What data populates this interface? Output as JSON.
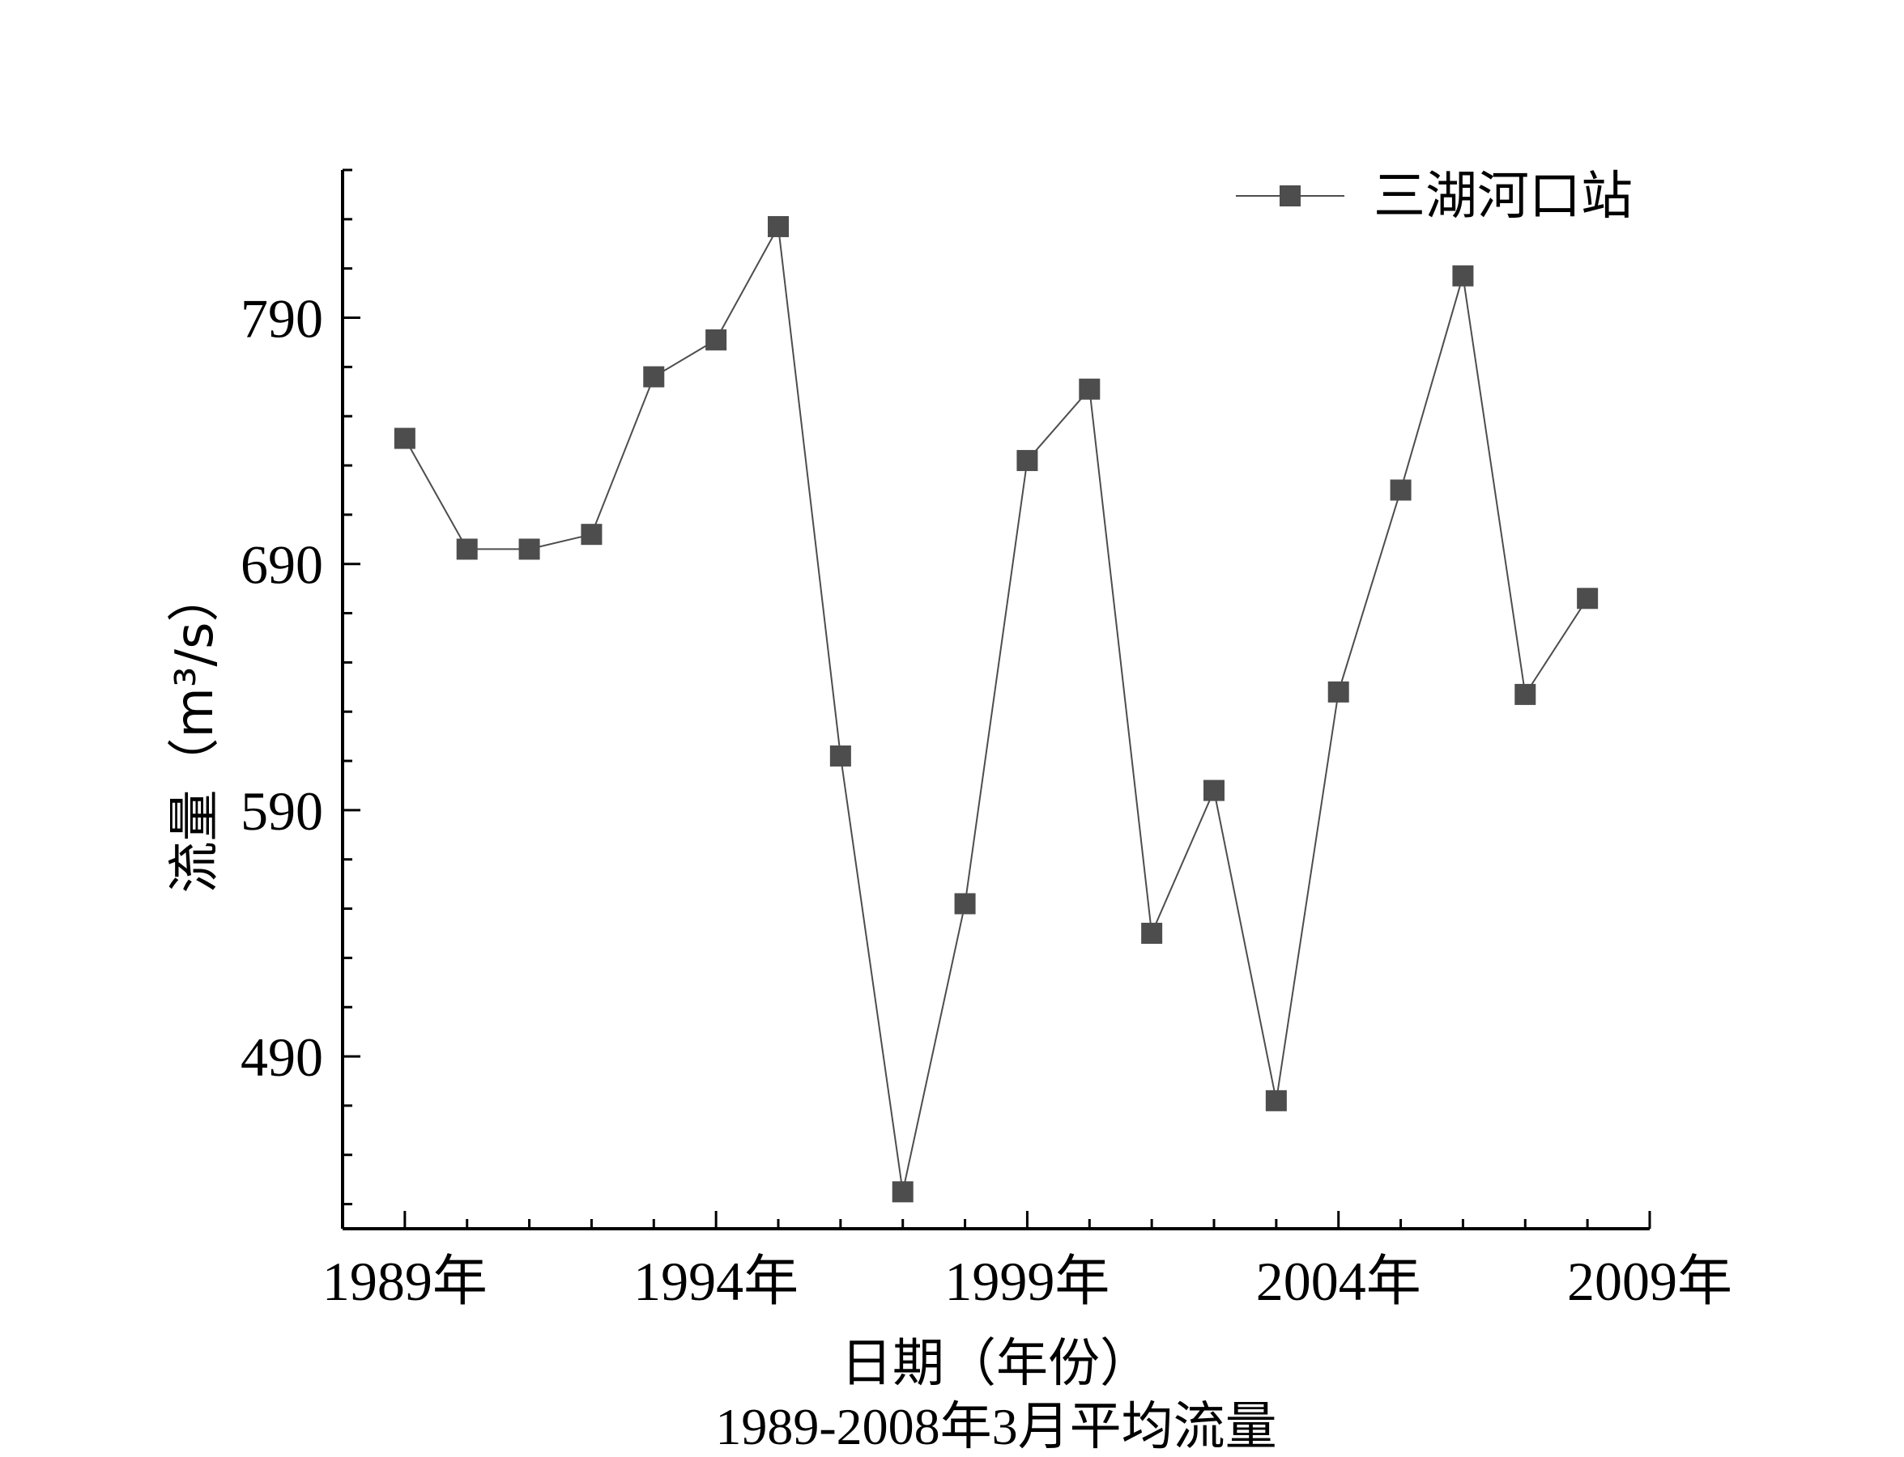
{
  "chart_data": {
    "type": "line",
    "title": "1989-2008年3月平均流量",
    "xlabel": "日期（年份）",
    "ylabel": "流量（m³/s）",
    "xlim": [
      1988.0,
      2009.0
    ],
    "ylim": [
      420,
      850
    ],
    "x_ticks": [
      1989,
      1994,
      1999,
      2004,
      2009
    ],
    "x_tick_suffix": "年",
    "y_ticks": [
      490,
      590,
      690,
      790
    ],
    "legend": "top-right",
    "grid": false,
    "colors": {
      "marker": "#4d4d4d",
      "line": "#4d4d4d",
      "axis": "#000000"
    },
    "series": [
      {
        "name": "三湖河口站",
        "x": [
          1989,
          1990,
          1991,
          1992,
          1993,
          1994,
          1995,
          1996,
          1997,
          1998,
          1999,
          2000,
          2001,
          2002,
          2003,
          2004,
          2005,
          2006,
          2007,
          2008
        ],
        "y": [
          741,
          696,
          696,
          702,
          766,
          781,
          827,
          612,
          435,
          552,
          732,
          761,
          540,
          598,
          472,
          638,
          720,
          807,
          637,
          676
        ]
      }
    ]
  }
}
